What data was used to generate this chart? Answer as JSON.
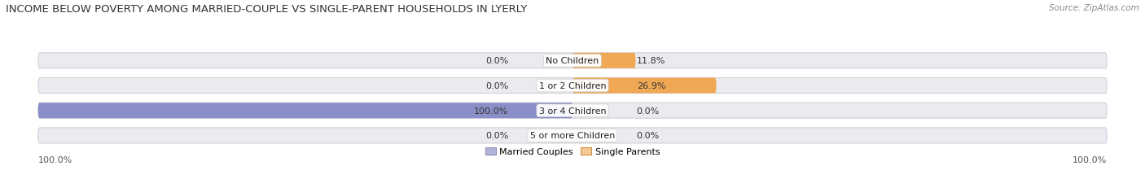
{
  "title": "INCOME BELOW POVERTY AMONG MARRIED-COUPLE VS SINGLE-PARENT HOUSEHOLDS IN LYERLY",
  "source": "Source: ZipAtlas.com",
  "categories": [
    "No Children",
    "1 or 2 Children",
    "3 or 4 Children",
    "5 or more Children"
  ],
  "married_couples": [
    0.0,
    0.0,
    100.0,
    0.0
  ],
  "single_parents": [
    11.8,
    26.9,
    0.0,
    0.0
  ],
  "married_color": "#8b8fc8",
  "married_color_light": "#b0b4d8",
  "single_color": "#f0a855",
  "single_color_light": "#f5c896",
  "bar_bg_color": "#eaeaef",
  "bar_border_color": "#d0d0dc",
  "axis_max": 100,
  "legend_married": "Married Couples",
  "legend_single": "Single Parents",
  "title_fontsize": 9.5,
  "source_fontsize": 7.5,
  "label_fontsize": 8,
  "value_fontsize": 8,
  "tick_fontsize": 8
}
